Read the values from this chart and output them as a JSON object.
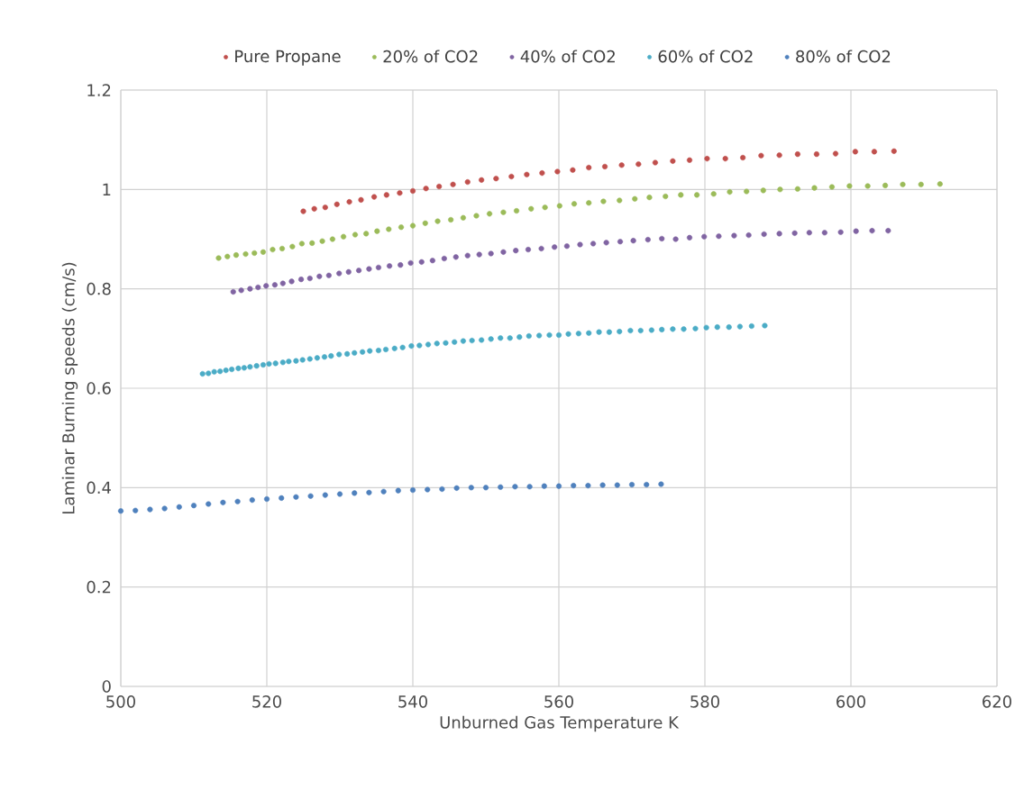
{
  "chart_data": {
    "type": "scatter",
    "xlabel": "Unburned Gas Temperature K",
    "ylabel": "Laminar Burning speeds (cm/s)",
    "xlim": [
      500,
      620
    ],
    "ylim": [
      0,
      1.2
    ],
    "xticks": [
      500,
      520,
      540,
      560,
      580,
      600,
      620
    ],
    "yticks": [
      0,
      0.2,
      0.4,
      0.6,
      0.8,
      1,
      1.2
    ],
    "grid": true,
    "legend": "top",
    "marker": "circle",
    "series": [
      {
        "name": "Pure Propane",
        "color": "#c0504d",
        "x": [
          525.0,
          526.5,
          528.0,
          529.6,
          531.3,
          532.9,
          534.7,
          536.4,
          538.2,
          540.0,
          541.8,
          543.6,
          545.5,
          547.5,
          549.4,
          551.4,
          553.5,
          555.6,
          557.7,
          559.8,
          561.9,
          564.1,
          566.3,
          568.6,
          570.9,
          573.2,
          575.6,
          577.9,
          580.3,
          582.8,
          585.2,
          587.7,
          590.2,
          592.7,
          595.3,
          597.9,
          600.6,
          603.2,
          605.9
        ],
        "values": [
          0.956,
          0.961,
          0.964,
          0.97,
          0.975,
          0.979,
          0.985,
          0.989,
          0.993,
          0.997,
          1.002,
          1.006,
          1.01,
          1.015,
          1.019,
          1.022,
          1.026,
          1.03,
          1.033,
          1.036,
          1.039,
          1.044,
          1.046,
          1.049,
          1.051,
          1.054,
          1.057,
          1.059,
          1.062,
          1.062,
          1.064,
          1.068,
          1.069,
          1.071,
          1.071,
          1.072,
          1.076,
          1.076,
          1.077
        ]
      },
      {
        "name": "20% of CO2",
        "color": "#9bbb59",
        "x": [
          513.4,
          514.6,
          515.8,
          517.1,
          518.3,
          519.5,
          520.8,
          522.1,
          523.5,
          524.8,
          526.2,
          527.6,
          529.0,
          530.5,
          532.1,
          533.6,
          535.1,
          536.7,
          538.4,
          540.0,
          541.7,
          543.4,
          545.2,
          546.9,
          548.7,
          550.5,
          552.4,
          554.2,
          556.2,
          558.1,
          560.1,
          562.1,
          564.1,
          566.1,
          568.3,
          570.4,
          572.4,
          574.6,
          576.7,
          578.9,
          581.2,
          583.4,
          585.7,
          588.0,
          590.3,
          592.7,
          595.0,
          597.4,
          599.8,
          602.3,
          604.7,
          607.1,
          609.6,
          612.2
        ],
        "values": [
          0.862,
          0.865,
          0.868,
          0.87,
          0.872,
          0.874,
          0.879,
          0.881,
          0.885,
          0.891,
          0.892,
          0.896,
          0.9,
          0.905,
          0.909,
          0.911,
          0.916,
          0.92,
          0.924,
          0.927,
          0.932,
          0.936,
          0.939,
          0.943,
          0.947,
          0.951,
          0.954,
          0.957,
          0.961,
          0.964,
          0.967,
          0.971,
          0.973,
          0.976,
          0.978,
          0.981,
          0.984,
          0.986,
          0.989,
          0.989,
          0.991,
          0.995,
          0.996,
          0.998,
          1.0,
          1.001,
          1.003,
          1.005,
          1.007,
          1.007,
          1.008,
          1.01,
          1.01,
          1.011
        ]
      },
      {
        "name": "40% of CO2",
        "color": "#8064a2",
        "x": [
          515.4,
          516.5,
          517.7,
          518.8,
          519.9,
          521.1,
          522.2,
          523.4,
          524.7,
          525.9,
          527.2,
          528.5,
          529.9,
          531.2,
          532.6,
          534.0,
          535.3,
          536.8,
          538.3,
          539.7,
          541.2,
          542.7,
          544.3,
          545.9,
          547.5,
          549.1,
          550.7,
          552.4,
          554.1,
          555.8,
          557.6,
          559.4,
          561.1,
          562.9,
          564.7,
          566.5,
          568.4,
          570.2,
          572.2,
          574.1,
          576.0,
          577.9,
          579.9,
          581.9,
          584.0,
          586.0,
          588.1,
          590.2,
          592.3,
          594.3,
          596.4,
          598.6,
          600.7,
          602.9,
          605.1
        ],
        "values": [
          0.794,
          0.797,
          0.8,
          0.803,
          0.806,
          0.808,
          0.811,
          0.815,
          0.819,
          0.821,
          0.825,
          0.827,
          0.831,
          0.834,
          0.837,
          0.84,
          0.843,
          0.846,
          0.848,
          0.852,
          0.854,
          0.857,
          0.861,
          0.864,
          0.867,
          0.869,
          0.871,
          0.874,
          0.877,
          0.879,
          0.881,
          0.884,
          0.886,
          0.889,
          0.891,
          0.893,
          0.895,
          0.897,
          0.899,
          0.901,
          0.9,
          0.903,
          0.905,
          0.906,
          0.907,
          0.908,
          0.91,
          0.911,
          0.912,
          0.913,
          0.913,
          0.914,
          0.916,
          0.917,
          0.917
        ]
      },
      {
        "name": "60% of CO2",
        "color": "#4bacc6",
        "x": [
          511.2,
          512.0,
          512.8,
          513.6,
          514.4,
          515.2,
          516.1,
          516.9,
          517.7,
          518.6,
          519.5,
          520.3,
          521.2,
          522.2,
          523.0,
          524.0,
          524.9,
          525.9,
          526.9,
          527.9,
          528.8,
          529.9,
          531.0,
          532.0,
          533.1,
          534.1,
          535.3,
          536.3,
          537.5,
          538.6,
          539.8,
          540.9,
          542.1,
          543.3,
          544.5,
          545.7,
          546.9,
          548.1,
          549.4,
          550.7,
          552.0,
          553.3,
          554.6,
          555.9,
          557.3,
          558.7,
          560.0,
          561.3,
          562.7,
          564.1,
          565.5,
          566.9,
          568.3,
          569.8,
          571.2,
          572.7,
          574.1,
          575.6,
          577.1,
          578.7,
          580.2,
          581.7,
          583.3,
          584.8,
          586.4,
          588.2
        ],
        "values": [
          0.629,
          0.63,
          0.633,
          0.634,
          0.636,
          0.638,
          0.64,
          0.641,
          0.643,
          0.645,
          0.647,
          0.649,
          0.65,
          0.652,
          0.654,
          0.655,
          0.657,
          0.659,
          0.661,
          0.663,
          0.665,
          0.668,
          0.669,
          0.671,
          0.673,
          0.675,
          0.676,
          0.678,
          0.68,
          0.682,
          0.685,
          0.686,
          0.688,
          0.69,
          0.691,
          0.693,
          0.695,
          0.696,
          0.697,
          0.699,
          0.701,
          0.701,
          0.703,
          0.705,
          0.706,
          0.707,
          0.707,
          0.709,
          0.71,
          0.711,
          0.713,
          0.713,
          0.714,
          0.716,
          0.716,
          0.717,
          0.718,
          0.719,
          0.719,
          0.72,
          0.722,
          0.723,
          0.723,
          0.724,
          0.725,
          0.726
        ]
      },
      {
        "name": "80% of CO2",
        "color": "#4f81bd",
        "x": [
          500,
          502,
          504,
          506,
          508,
          510,
          512,
          514,
          516,
          518,
          520,
          522,
          524,
          526,
          528,
          530,
          532,
          534,
          536,
          538,
          540,
          542,
          544,
          546,
          548,
          550,
          552,
          554,
          556,
          558,
          560,
          562,
          564,
          566,
          568,
          570,
          572,
          574
        ],
        "values": [
          0.353,
          0.354,
          0.356,
          0.358,
          0.361,
          0.364,
          0.367,
          0.37,
          0.372,
          0.375,
          0.377,
          0.379,
          0.381,
          0.383,
          0.385,
          0.387,
          0.389,
          0.39,
          0.392,
          0.394,
          0.395,
          0.396,
          0.397,
          0.399,
          0.4,
          0.4,
          0.401,
          0.402,
          0.402,
          0.403,
          0.403,
          0.404,
          0.404,
          0.405,
          0.405,
          0.406,
          0.406,
          0.407
        ]
      }
    ]
  }
}
